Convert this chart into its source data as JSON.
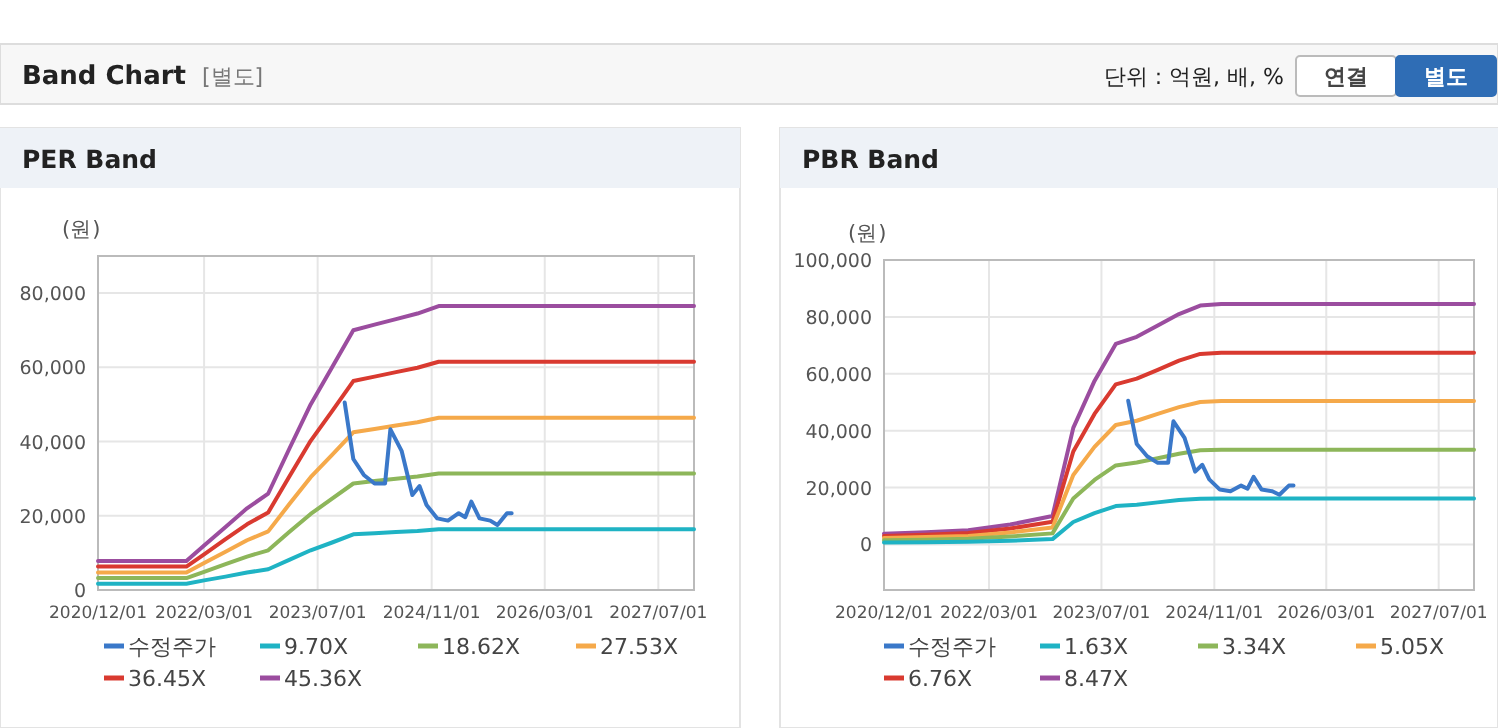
{
  "chart_data": [
    {
      "type": "line",
      "title": "PER Band",
      "ylabel": "(원)",
      "annotations": [
        "Band Chart",
        "[별도]",
        "단위 : 억원, 배, %",
        "연결",
        "별도"
      ],
      "xlim": [
        "2020-12-01",
        "2027-12-01"
      ],
      "xticks": [
        {
          "value": "2020-12-01",
          "label": "2020/12/01"
        },
        {
          "value": "2022-03-01",
          "label": "2022/03/01"
        },
        {
          "value": "2023-07-01",
          "label": "2023/07/01"
        },
        {
          "value": "2024-11-01",
          "label": "2024/11/01"
        },
        {
          "value": "2026-03-01",
          "label": "2026/03/01"
        },
        {
          "value": "2027-07-01",
          "label": "2027/07/01"
        }
      ],
      "ylim": [
        0,
        90000
      ],
      "yticks": [
        0,
        {
          "value": 20000,
          "label": "20,000"
        },
        {
          "value": 40000,
          "label": "40,000"
        },
        {
          "value": 60000,
          "label": "60,000"
        },
        {
          "value": 80000,
          "label": "80,000"
        }
      ],
      "grid": true,
      "legend": "bottom",
      "series": [
        {
          "name": "수정주가",
          "color": "#3a78c9",
          "x": [
            "2023-10-25",
            "2023-12-01",
            "2024-01-15",
            "2024-03-01",
            "2024-04-15",
            "2024-05-08",
            "2024-06-25",
            "2024-08-10",
            "2024-09-10",
            "2024-10-10",
            "2024-11-25",
            "2025-01-10",
            "2025-02-25",
            "2025-03-25",
            "2025-04-20",
            "2025-05-25",
            "2025-07-10",
            "2025-08-10",
            "2025-09-20",
            "2025-10-10"
          ],
          "values": [
            50500,
            35300,
            31000,
            28700,
            28700,
            43300,
            37500,
            25600,
            28000,
            22900,
            19300,
            18700,
            20700,
            19600,
            23800,
            19300,
            18700,
            17500,
            20700,
            20700
          ]
        },
        {
          "name": "9.70X",
          "color": "#1fb3c4",
          "x": [
            "2020-12-01",
            "2021-12-15",
            "2022-03-01",
            "2022-06-01",
            "2022-09-01",
            "2022-12-01",
            "2023-03-01",
            "2023-06-01",
            "2023-09-01",
            "2023-12-01",
            "2024-03-01",
            "2024-06-01",
            "2024-09-01",
            "2024-12-01",
            "2027-12-01"
          ],
          "values": [
            1700,
            1700,
            2600,
            3600,
            4700,
            5600,
            8100,
            10700,
            12800,
            15000,
            15300,
            15600,
            15900,
            16400,
            16400
          ]
        },
        {
          "name": "18.62X",
          "color": "#8db65a",
          "x": [
            "2020-12-01",
            "2021-12-15",
            "2022-03-01",
            "2022-06-01",
            "2022-09-01",
            "2022-12-01",
            "2023-03-01",
            "2023-06-01",
            "2023-09-01",
            "2023-12-01",
            "2024-03-01",
            "2024-06-01",
            "2024-09-01",
            "2024-12-01",
            "2027-12-01"
          ],
          "values": [
            3200,
            3200,
            4900,
            7000,
            9000,
            10700,
            15600,
            20500,
            24600,
            28700,
            29400,
            30000,
            30600,
            31400,
            31400
          ]
        },
        {
          "name": "27.53X",
          "color": "#f5a94a",
          "x": [
            "2020-12-01",
            "2021-12-15",
            "2022-03-01",
            "2022-06-01",
            "2022-09-01",
            "2022-12-01",
            "2023-03-01",
            "2023-06-01",
            "2023-09-01",
            "2023-12-01",
            "2024-03-01",
            "2024-06-01",
            "2024-09-01",
            "2024-12-01",
            "2027-12-01"
          ],
          "values": [
            4700,
            4700,
            7300,
            10300,
            13400,
            15800,
            23100,
            30400,
            36400,
            42500,
            43400,
            44300,
            45200,
            46400,
            46400
          ]
        },
        {
          "name": "36.45X",
          "color": "#d93a30",
          "x": [
            "2020-12-01",
            "2021-12-15",
            "2022-03-01",
            "2022-06-01",
            "2022-09-01",
            "2022-12-01",
            "2023-03-01",
            "2023-06-01",
            "2023-09-01",
            "2023-12-01",
            "2024-03-01",
            "2024-06-01",
            "2024-09-01",
            "2024-12-01",
            "2027-12-01"
          ],
          "values": [
            6300,
            6300,
            9600,
            13700,
            17700,
            20900,
            30500,
            40200,
            48200,
            56300,
            57500,
            58700,
            59900,
            61500,
            61500
          ]
        },
        {
          "name": "45.36X",
          "color": "#9b4d9f",
          "x": [
            "2020-12-01",
            "2021-12-15",
            "2022-03-01",
            "2022-06-01",
            "2022-09-01",
            "2022-12-01",
            "2023-03-01",
            "2023-06-01",
            "2023-09-01",
            "2023-12-01",
            "2024-03-01",
            "2024-06-01",
            "2024-09-01",
            "2024-12-01",
            "2027-12-01"
          ],
          "values": [
            7800,
            7800,
            12000,
            17000,
            22000,
            26000,
            38000,
            50000,
            60000,
            70000,
            71500,
            73000,
            74500,
            76500,
            76500
          ]
        }
      ]
    },
    {
      "type": "line",
      "title": "PBR Band",
      "ylabel": "(원)",
      "xlim": [
        "2020-12-01",
        "2027-12-01"
      ],
      "xticks": [
        {
          "value": "2020-12-01",
          "label": "2020/12/01"
        },
        {
          "value": "2022-03-01",
          "label": "2022/03/01"
        },
        {
          "value": "2023-07-01",
          "label": "2023/07/01"
        },
        {
          "value": "2024-11-01",
          "label": "2024/11/01"
        },
        {
          "value": "2026-03-01",
          "label": "2026/03/01"
        },
        {
          "value": "2027-07-01",
          "label": "2027/07/01"
        }
      ],
      "ylim": [
        -16000,
        100000
      ],
      "yticks": [
        0,
        {
          "value": 20000,
          "label": "20,000"
        },
        {
          "value": 40000,
          "label": "40,000"
        },
        {
          "value": 60000,
          "label": "60,000"
        },
        {
          "value": 80000,
          "label": "80,000"
        },
        {
          "value": 100000,
          "label": "100,000"
        }
      ],
      "grid": true,
      "legend": "bottom",
      "series": [
        {
          "name": "수정주가",
          "color": "#3a78c9",
          "x": [
            "2023-10-25",
            "2023-12-01",
            "2024-01-15",
            "2024-03-01",
            "2024-04-15",
            "2024-05-08",
            "2024-06-25",
            "2024-08-10",
            "2024-09-10",
            "2024-10-10",
            "2024-11-25",
            "2025-01-10",
            "2025-02-25",
            "2025-03-25",
            "2025-04-20",
            "2025-05-25",
            "2025-07-10",
            "2025-08-10",
            "2025-09-20",
            "2025-10-10"
          ],
          "values": [
            50500,
            35300,
            31000,
            28700,
            28700,
            43300,
            37500,
            25600,
            28000,
            22900,
            19300,
            18700,
            20700,
            19600,
            23800,
            19300,
            18700,
            17500,
            20700,
            20700
          ]
        },
        {
          "name": "1.63X",
          "color": "#1fb3c4",
          "x": [
            "2020-12-01",
            "2021-06-01",
            "2021-12-01",
            "2022-06-01",
            "2022-12-01",
            "2023-03-01",
            "2023-06-01",
            "2023-09-01",
            "2023-12-01",
            "2024-03-01",
            "2024-06-01",
            "2024-09-01",
            "2024-12-01",
            "2027-12-01"
          ],
          "values": [
            700,
            800,
            1000,
            1300,
            1900,
            7900,
            11000,
            13500,
            14000,
            14800,
            15600,
            16100,
            16200,
            16200
          ]
        },
        {
          "name": "3.34X",
          "color": "#8db65a",
          "x": [
            "2020-12-01",
            "2021-06-01",
            "2021-12-01",
            "2022-06-01",
            "2022-12-01",
            "2023-03-01",
            "2023-06-01",
            "2023-09-01",
            "2023-12-01",
            "2024-03-01",
            "2024-06-01",
            "2024-09-01",
            "2024-12-01",
            "2027-12-01"
          ],
          "values": [
            1500,
            1700,
            2000,
            2800,
            3900,
            16200,
            22700,
            27800,
            28800,
            30300,
            31900,
            33100,
            33300,
            33300
          ]
        },
        {
          "name": "5.05X",
          "color": "#f5a94a",
          "x": [
            "2020-12-01",
            "2021-06-01",
            "2021-12-01",
            "2022-06-01",
            "2022-12-01",
            "2023-03-01",
            "2023-06-01",
            "2023-09-01",
            "2023-12-01",
            "2024-03-01",
            "2024-06-01",
            "2024-09-01",
            "2024-12-01",
            "2027-12-01"
          ],
          "values": [
            2300,
            2600,
            3000,
            4200,
            6000,
            24400,
            34300,
            42000,
            43500,
            45900,
            48300,
            50100,
            50400,
            50400
          ]
        },
        {
          "name": "6.76X",
          "color": "#d93a30",
          "x": [
            "2020-12-01",
            "2021-06-01",
            "2021-12-01",
            "2022-06-01",
            "2022-12-01",
            "2023-03-01",
            "2023-06-01",
            "2023-09-01",
            "2023-12-01",
            "2024-03-01",
            "2024-06-01",
            "2024-09-01",
            "2024-12-01",
            "2027-12-01"
          ],
          "values": [
            3000,
            3400,
            4000,
            5600,
            8000,
            32700,
            45900,
            56300,
            58300,
            61400,
            64600,
            67000,
            67400,
            67400
          ]
        },
        {
          "name": "8.47X",
          "color": "#9b4d9f",
          "x": [
            "2020-12-01",
            "2021-06-01",
            "2021-12-01",
            "2022-06-01",
            "2022-12-01",
            "2023-03-01",
            "2023-06-01",
            "2023-09-01",
            "2023-12-01",
            "2024-03-01",
            "2024-06-01",
            "2024-09-01",
            "2024-12-01",
            "2027-12-01"
          ],
          "values": [
            3800,
            4300,
            5000,
            7000,
            10000,
            41000,
            57500,
            70500,
            73000,
            77000,
            81000,
            84000,
            84500,
            84500
          ]
        }
      ]
    }
  ]
}
